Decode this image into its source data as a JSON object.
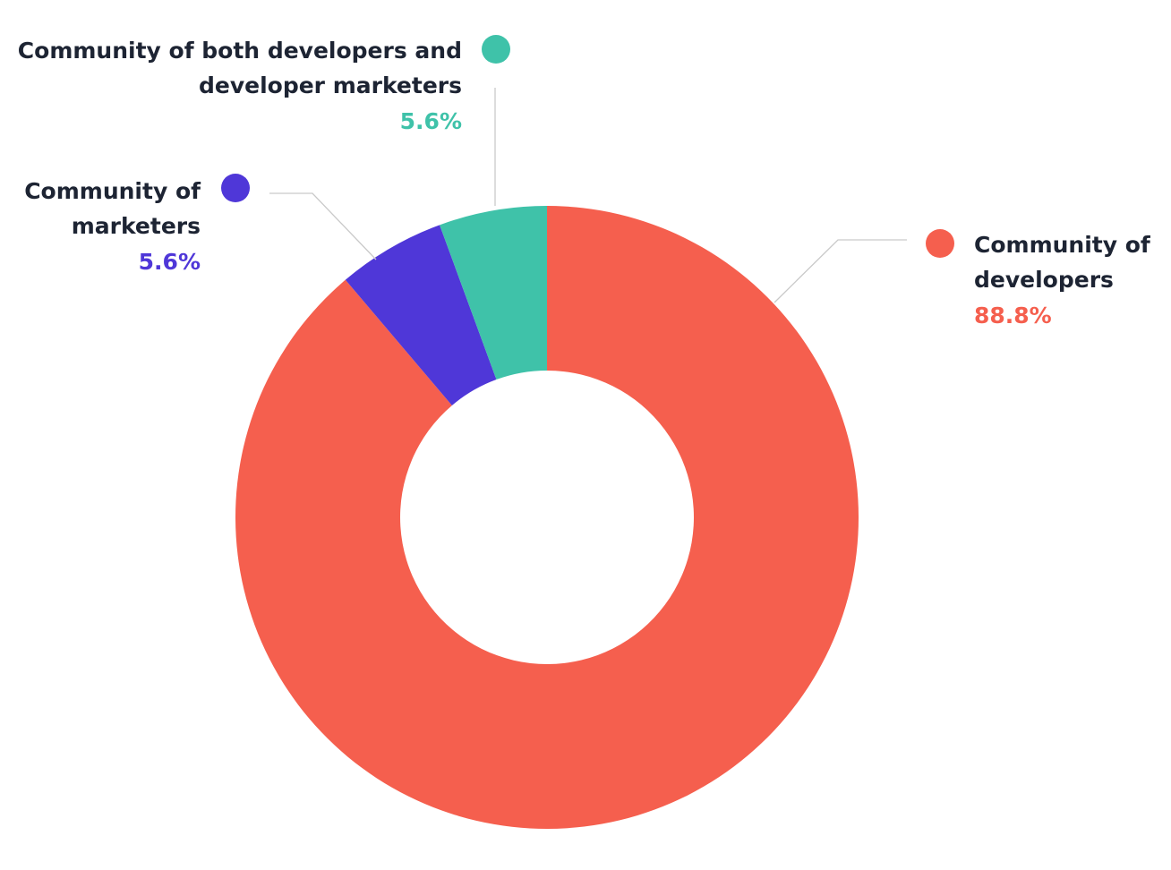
{
  "chart_data": {
    "type": "pie",
    "variant": "donut",
    "title": "",
    "slices": [
      {
        "label_lines": [
          "Community of",
          "developers"
        ],
        "value": 88.8,
        "value_label": "88.8%",
        "color": "#f55f4e"
      },
      {
        "label_lines": [
          "Community of",
          "marketers"
        ],
        "value": 5.6,
        "value_label": "5.6%",
        "color": "#4f37d8"
      },
      {
        "label_lines": [
          "Community of both developers and",
          "developer marketers"
        ],
        "value": 5.6,
        "value_label": "5.6%",
        "color": "#3fc2a9"
      }
    ]
  }
}
